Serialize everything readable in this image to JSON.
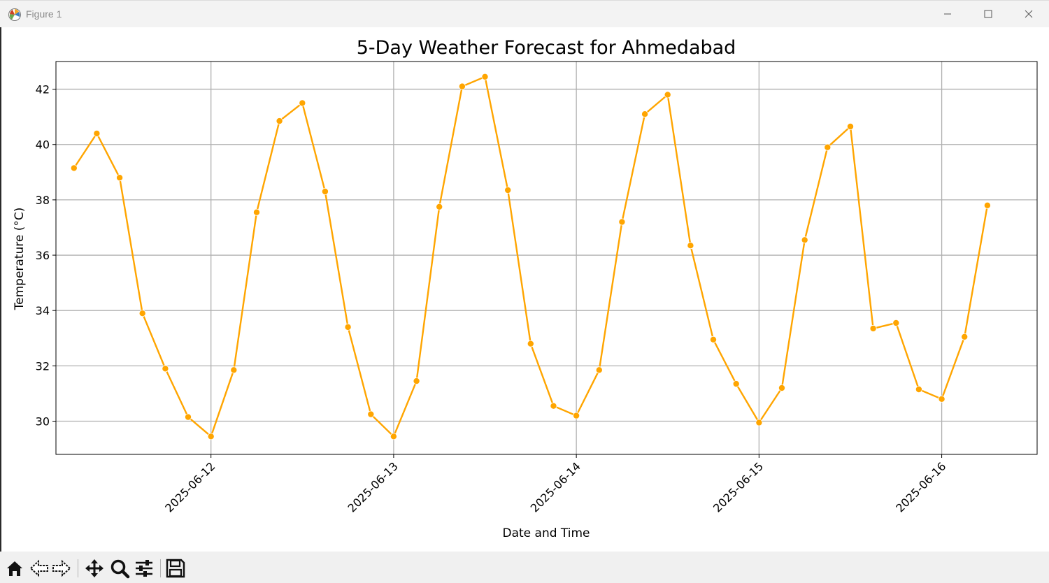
{
  "window": {
    "title": "Figure 1"
  },
  "toolbar": {
    "buttons": [
      "home-icon",
      "back-icon",
      "forward-icon",
      "pan-icon",
      "zoom-icon",
      "configure-subplots-icon",
      "save-icon"
    ]
  },
  "colors": {
    "series": "#FFA500",
    "grid": "#b0b0b0",
    "axis": "#000000"
  },
  "chart_data": {
    "type": "line",
    "title": "5-Day Weather Forecast for Ahmedabad",
    "xlabel": "Date and Time",
    "ylabel": "Temperature (°C)",
    "x_ticks": [
      "2025-06-12",
      "2025-06-13",
      "2025-06-14",
      "2025-06-15",
      "2025-06-16"
    ],
    "y_ticks": [
      30,
      32,
      34,
      36,
      38,
      40,
      42
    ],
    "xlim": [
      "2025-06-11 03:38",
      "2025-06-16 12:32"
    ],
    "ylim": [
      28.8,
      43.0
    ],
    "grid": true,
    "marker": "o",
    "series": [
      {
        "x": [
          "2025-06-11 06:00",
          "2025-06-11 09:00",
          "2025-06-11 12:00",
          "2025-06-11 15:00",
          "2025-06-11 18:00",
          "2025-06-11 21:00",
          "2025-06-12 00:00",
          "2025-06-12 03:00",
          "2025-06-12 06:00",
          "2025-06-12 09:00",
          "2025-06-12 12:00",
          "2025-06-12 15:00",
          "2025-06-12 18:00",
          "2025-06-12 21:00",
          "2025-06-13 00:00",
          "2025-06-13 03:00",
          "2025-06-13 06:00",
          "2025-06-13 09:00",
          "2025-06-13 12:00",
          "2025-06-13 15:00",
          "2025-06-13 18:00",
          "2025-06-13 21:00",
          "2025-06-14 00:00",
          "2025-06-14 03:00",
          "2025-06-14 06:00",
          "2025-06-14 09:00",
          "2025-06-14 12:00",
          "2025-06-14 15:00",
          "2025-06-14 18:00",
          "2025-06-14 21:00",
          "2025-06-15 00:00",
          "2025-06-15 03:00",
          "2025-06-15 06:00",
          "2025-06-15 09:00",
          "2025-06-15 12:00",
          "2025-06-15 15:00",
          "2025-06-15 18:00",
          "2025-06-15 21:00",
          "2025-06-16 00:00",
          "2025-06-16 03:00",
          "2025-06-16 06:00"
        ],
        "y": [
          39.15,
          40.4,
          38.8,
          33.9,
          31.9,
          30.15,
          29.45,
          31.85,
          37.55,
          40.85,
          41.5,
          38.3,
          33.4,
          30.25,
          29.45,
          31.45,
          37.75,
          42.1,
          42.45,
          38.35,
          32.8,
          30.55,
          30.2,
          31.85,
          37.2,
          41.1,
          41.8,
          36.35,
          32.95,
          31.35,
          29.95,
          31.2,
          36.55,
          39.9,
          40.65,
          33.35,
          33.55,
          31.15,
          30.8,
          33.05,
          37.8
        ]
      }
    ]
  }
}
